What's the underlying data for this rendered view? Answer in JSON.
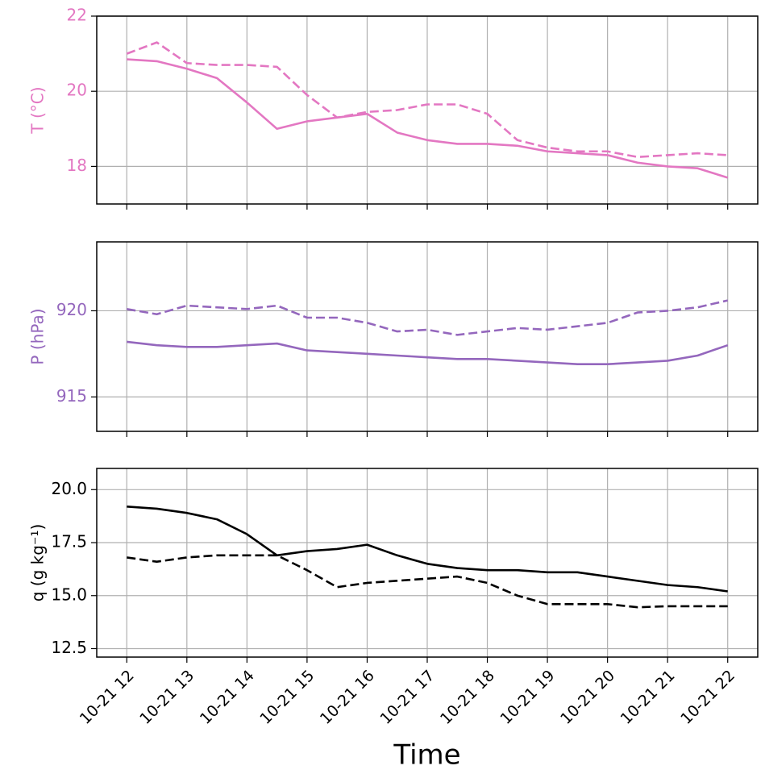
{
  "chart_data": [
    {
      "type": "line",
      "ylabel": "T (°C)",
      "axis_color": "#e377c2",
      "x": [
        12,
        12.5,
        13,
        13.5,
        14,
        14.5,
        15,
        15.5,
        16,
        16.5,
        17,
        17.5,
        18,
        18.5,
        19,
        19.5,
        20,
        20.5,
        21,
        21.5,
        22
      ],
      "series": [
        {
          "color": "#e377c2",
          "linestyle": "solid",
          "values": [
            20.85,
            20.8,
            20.6,
            20.35,
            19.7,
            19.0,
            19.2,
            19.3,
            19.4,
            18.9,
            18.7,
            18.6,
            18.6,
            18.55,
            18.4,
            18.35,
            18.3,
            18.1,
            18.0,
            17.95,
            17.7
          ]
        },
        {
          "color": "#e377c2",
          "linestyle": "dashed",
          "values": [
            21.0,
            21.3,
            20.75,
            20.7,
            20.7,
            20.65,
            19.9,
            19.3,
            19.45,
            19.5,
            19.65,
            19.65,
            19.4,
            18.7,
            18.5,
            18.4,
            18.4,
            18.25,
            18.3,
            18.35,
            18.3
          ]
        }
      ],
      "xlim": [
        11.5,
        22.5
      ],
      "xticks": [
        12,
        13,
        14,
        15,
        16,
        17,
        18,
        19,
        20,
        21,
        22
      ],
      "ylim": [
        17,
        22
      ],
      "yticks": [
        18,
        20,
        22
      ],
      "grid": true
    },
    {
      "type": "line",
      "ylabel": "P (hPa)",
      "axis_color": "#9467bd",
      "x": [
        12,
        12.5,
        13,
        13.5,
        14,
        14.5,
        15,
        15.5,
        16,
        16.5,
        17,
        17.5,
        18,
        18.5,
        19,
        19.5,
        20,
        20.5,
        21,
        21.5,
        22
      ],
      "series": [
        {
          "color": "#9467bd",
          "linestyle": "solid",
          "values": [
            918.2,
            918.0,
            917.9,
            917.9,
            918.0,
            918.1,
            917.7,
            917.6,
            917.5,
            917.4,
            917.3,
            917.2,
            917.2,
            917.1,
            917.0,
            916.9,
            916.9,
            917.0,
            917.1,
            917.4,
            918.0
          ]
        },
        {
          "color": "#9467bd",
          "linestyle": "dashed",
          "values": [
            920.1,
            919.8,
            920.3,
            920.2,
            920.1,
            920.3,
            919.6,
            919.6,
            919.3,
            918.8,
            918.9,
            918.6,
            918.8,
            919.0,
            918.9,
            919.1,
            919.3,
            919.9,
            920.0,
            920.2,
            920.6
          ]
        }
      ],
      "xlim": [
        11.5,
        22.5
      ],
      "xticks": [
        12,
        13,
        14,
        15,
        16,
        17,
        18,
        19,
        20,
        21,
        22
      ],
      "ylim": [
        913,
        924
      ],
      "yticks": [
        915,
        920
      ],
      "grid": true
    },
    {
      "type": "line",
      "ylabel": "q (g kg⁻¹)",
      "xlabel": "Time",
      "axis_color": "#000000",
      "x": [
        12,
        12.5,
        13,
        13.5,
        14,
        14.5,
        15,
        15.5,
        16,
        16.5,
        17,
        17.5,
        18,
        18.5,
        19,
        19.5,
        20,
        20.5,
        21,
        21.5,
        22
      ],
      "series": [
        {
          "color": "#000000",
          "linestyle": "solid",
          "values": [
            19.2,
            19.1,
            18.9,
            18.6,
            17.9,
            16.9,
            17.1,
            17.2,
            17.4,
            16.9,
            16.5,
            16.3,
            16.2,
            16.2,
            16.1,
            16.1,
            15.9,
            15.7,
            15.5,
            15.4,
            15.2
          ]
        },
        {
          "color": "#000000",
          "linestyle": "dashed",
          "values": [
            16.8,
            16.6,
            16.8,
            16.9,
            16.9,
            16.9,
            16.2,
            15.4,
            15.6,
            15.7,
            15.8,
            15.9,
            15.6,
            15.0,
            14.6,
            14.6,
            14.6,
            14.45,
            14.5,
            14.5,
            14.5
          ]
        }
      ],
      "xlim": [
        11.5,
        22.5
      ],
      "xticks": [
        {
          "value": 12,
          "label": "10-21 12"
        },
        {
          "value": 13,
          "label": "10-21 13"
        },
        {
          "value": 14,
          "label": "10-21 14"
        },
        {
          "value": 15,
          "label": "10-21 15"
        },
        {
          "value": 16,
          "label": "10-21 16"
        },
        {
          "value": 17,
          "label": "10-21 17"
        },
        {
          "value": 18,
          "label": "10-21 18"
        },
        {
          "value": 19,
          "label": "10-21 19"
        },
        {
          "value": 20,
          "label": "10-21 20"
        },
        {
          "value": 21,
          "label": "10-21 21"
        },
        {
          "value": 22,
          "label": "10-21 22"
        }
      ],
      "ylim": [
        12.1,
        21
      ],
      "yticks": [
        {
          "value": 12.5,
          "label": "12.5"
        },
        {
          "value": 15,
          "label": "15.0"
        },
        {
          "value": 17.5,
          "label": "17.5"
        },
        {
          "value": 20,
          "label": "20.0"
        }
      ],
      "grid": true
    }
  ]
}
